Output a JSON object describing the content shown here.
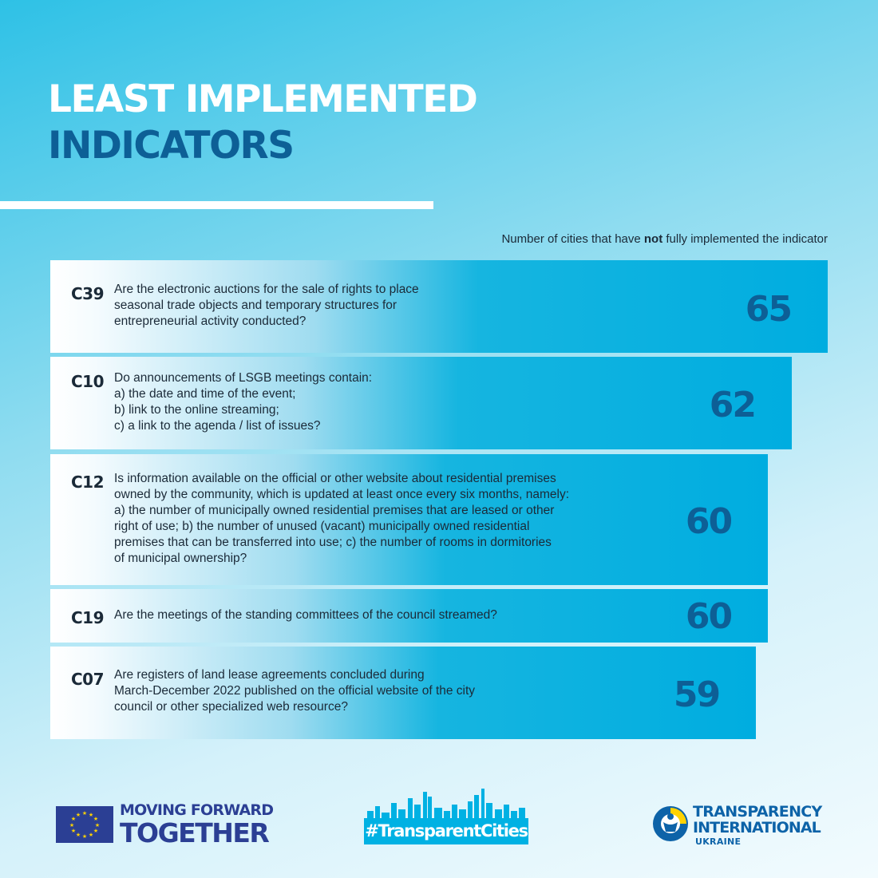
{
  "header": {
    "title_line1": "LEAST IMPLEMENTED",
    "title_line2": "INDICATORS",
    "caption_before": "Number of cities that have ",
    "caption_bold": "not",
    "caption_after": " fully implemented the indicator"
  },
  "colors": {
    "title_white": "#ffffff",
    "title_dark": "#0d5f96",
    "bar": "#00ade0",
    "value": "#0d5f96",
    "text": "#1b2a38"
  },
  "chart_data": {
    "type": "bar",
    "orientation": "horizontal",
    "title": "LEAST IMPLEMENTED INDICATORS",
    "xlabel": "Number of cities that have not fully implemented the indicator",
    "categories": [
      "C39",
      "C10",
      "C12",
      "C19",
      "C07"
    ],
    "values": [
      65,
      62,
      60,
      60,
      59
    ],
    "questions": [
      "Are the electronic auctions for the sale of rights to place\nseasonal trade objects and temporary structures for\nentrepreneurial activity conducted?",
      "Do announcements of LSGB meetings contain:\na) the date and time of the event;\nb) link to the online streaming;\nc) a link to the agenda / list of issues?",
      "Is information available on the official or other website about residential premises\nowned by the community, which is updated at least once every six months, namely:\na) the number of municipally owned residential premises that are leased or other\nright of use; b) the number of unused (vacant) municipally owned residential\npremises that can be transferred into use; c) the number of rooms in dormitories\nof municipal ownership?",
      "Are the meetings of the standing committees of the council streamed?",
      "Are registers of land lease agreements concluded during\nMarch-December 2022 published on the official website of the city\ncouncil or other specialized web resource?"
    ]
  },
  "footer": {
    "eu_line1": "MOVING FORWARD",
    "eu_line2": "TOGETHER",
    "hashtag": "#TransparentCities",
    "ti_line1": "TRANSPARENCY",
    "ti_line2": "INTERNATIONAL",
    "ti_line3": "UKRAINE"
  }
}
